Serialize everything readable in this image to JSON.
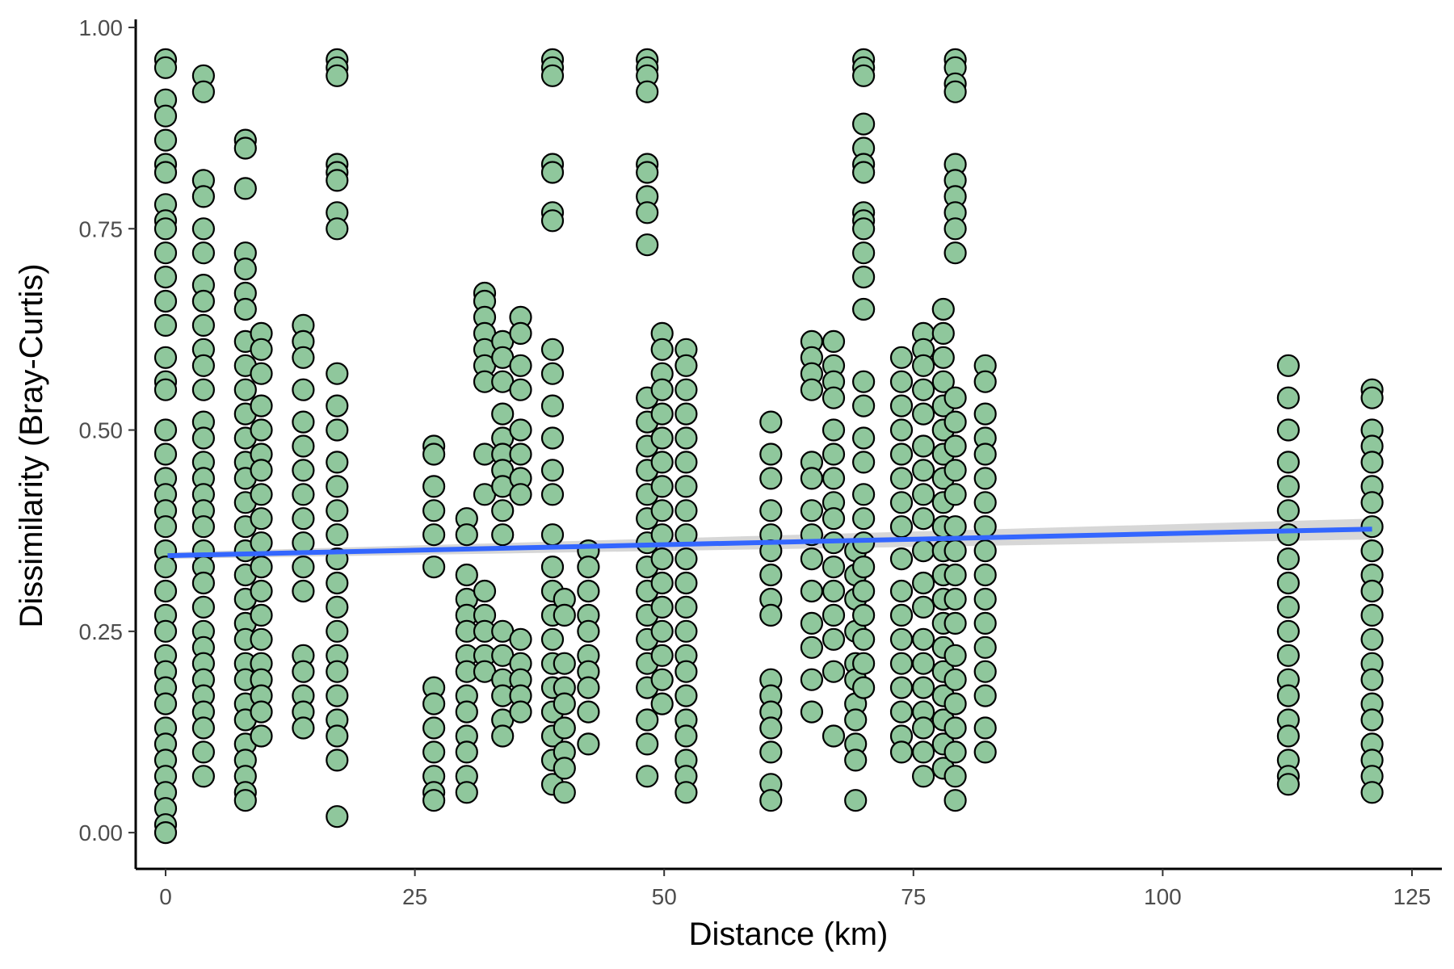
{
  "chart_data": {
    "type": "scatter",
    "xlabel": "Distance (km)",
    "ylabel": "Dissimilarity (Bray-Curtis)",
    "xlim": [
      -3,
      128
    ],
    "ylim": [
      -0.045,
      1.01
    ],
    "x_ticks": [
      0,
      25,
      50,
      75,
      100,
      125
    ],
    "y_ticks": [
      0.0,
      0.25,
      0.5,
      0.75,
      1.0
    ],
    "x_tick_labels": [
      "0",
      "25",
      "50",
      "75",
      "100",
      "125"
    ],
    "y_tick_labels": [
      "0.00",
      "0.25",
      "0.50",
      "0.75",
      "1.00"
    ],
    "grid": false,
    "legend": "none",
    "colors": {
      "point_fill": "#8fc79c",
      "point_stroke": "#000000",
      "trend_line": "#3366ff",
      "confidence_band": "#bdbdbd"
    },
    "trend": {
      "x": [
        0.2,
        121
      ],
      "y": [
        0.344,
        0.377
      ],
      "band_half_width_start": 0.004,
      "band_half_width_end": 0.013
    },
    "series": [
      {
        "values": [
          {
            "x": 0,
            "y": [
              0.96,
              0.95,
              0.91,
              0.89,
              0.86,
              0.83,
              0.82,
              0.78,
              0.76,
              0.75,
              0.72,
              0.69,
              0.66,
              0.63,
              0.59,
              0.56,
              0.55,
              0.5,
              0.47,
              0.44,
              0.42,
              0.4,
              0.38,
              0.35,
              0.33,
              0.3,
              0.27,
              0.25,
              0.22,
              0.2,
              0.18,
              0.16,
              0.13,
              0.11,
              0.09,
              0.07,
              0.05,
              0.03,
              0.01,
              0.0
            ]
          },
          {
            "x": 3.8,
            "y": [
              0.94,
              0.92,
              0.81,
              0.79,
              0.75,
              0.72,
              0.68,
              0.66,
              0.63,
              0.6,
              0.58,
              0.55,
              0.51,
              0.49,
              0.46,
              0.44,
              0.42,
              0.4,
              0.38,
              0.35,
              0.33,
              0.31,
              0.28,
              0.25,
              0.23,
              0.21,
              0.19,
              0.17,
              0.15,
              0.13,
              0.1,
              0.07
            ]
          },
          {
            "x": 8,
            "y": [
              0.86,
              0.85,
              0.8,
              0.72,
              0.7,
              0.67,
              0.65,
              0.61,
              0.58,
              0.55,
              0.52,
              0.49,
              0.46,
              0.44,
              0.41,
              0.38,
              0.35,
              0.32,
              0.29,
              0.26,
              0.24,
              0.21,
              0.19,
              0.16,
              0.14,
              0.11,
              0.09,
              0.07,
              0.05,
              0.04
            ]
          },
          {
            "x": 9.6,
            "y": [
              0.62,
              0.6,
              0.57,
              0.53,
              0.5,
              0.47,
              0.45,
              0.42,
              0.39,
              0.36,
              0.33,
              0.3,
              0.27,
              0.24,
              0.21,
              0.19,
              0.17,
              0.15,
              0.12
            ]
          },
          {
            "x": 13.8,
            "y": [
              0.63,
              0.61,
              0.59,
              0.55,
              0.51,
              0.48,
              0.45,
              0.42,
              0.39,
              0.36,
              0.33,
              0.3,
              0.22,
              0.2,
              0.17,
              0.15,
              0.13
            ]
          },
          {
            "x": 17.2,
            "y": [
              0.96,
              0.95,
              0.94,
              0.83,
              0.82,
              0.81,
              0.77,
              0.75,
              0.57,
              0.53,
              0.5,
              0.46,
              0.43,
              0.4,
              0.37,
              0.34,
              0.31,
              0.28,
              0.25,
              0.22,
              0.2,
              0.17,
              0.14,
              0.12,
              0.09,
              0.02
            ]
          },
          {
            "x": 26.9,
            "y": [
              0.48,
              0.47,
              0.43,
              0.4,
              0.37,
              0.33,
              0.18,
              0.16,
              0.13,
              0.1,
              0.07,
              0.05,
              0.04
            ]
          },
          {
            "x": 30.2,
            "y": [
              0.39,
              0.37,
              0.32,
              0.29,
              0.27,
              0.25,
              0.22,
              0.2,
              0.17,
              0.15,
              0.12,
              0.1,
              0.07,
              0.05
            ]
          },
          {
            "x": 32,
            "y": [
              0.67,
              0.66,
              0.64,
              0.62,
              0.6,
              0.58,
              0.56,
              0.47,
              0.42,
              0.3,
              0.27,
              0.25,
              0.22,
              0.2
            ]
          },
          {
            "x": 33.8,
            "y": [
              0.61,
              0.59,
              0.56,
              0.52,
              0.49,
              0.47,
              0.45,
              0.43,
              0.4,
              0.37,
              0.25,
              0.22,
              0.19,
              0.17,
              0.14,
              0.12
            ]
          },
          {
            "x": 35.6,
            "y": [
              0.64,
              0.62,
              0.58,
              0.55,
              0.5,
              0.47,
              0.44,
              0.42,
              0.24,
              0.21,
              0.19,
              0.17,
              0.15
            ]
          },
          {
            "x": 38.8,
            "y": [
              0.96,
              0.95,
              0.94,
              0.83,
              0.82,
              0.77,
              0.76,
              0.6,
              0.57,
              0.53,
              0.49,
              0.45,
              0.42,
              0.37,
              0.33,
              0.3,
              0.27,
              0.24,
              0.21,
              0.18,
              0.15,
              0.12,
              0.09,
              0.06
            ]
          },
          {
            "x": 40,
            "y": [
              0.29,
              0.27,
              0.21,
              0.18,
              0.16,
              0.13,
              0.1,
              0.08,
              0.05
            ]
          },
          {
            "x": 42.4,
            "y": [
              0.35,
              0.33,
              0.3,
              0.27,
              0.25,
              0.22,
              0.2,
              0.18,
              0.15,
              0.11
            ]
          },
          {
            "x": 48.3,
            "y": [
              0.96,
              0.95,
              0.94,
              0.92,
              0.83,
              0.82,
              0.79,
              0.77,
              0.73,
              0.54,
              0.51,
              0.48,
              0.45,
              0.42,
              0.39,
              0.36,
              0.33,
              0.3,
              0.27,
              0.24,
              0.21,
              0.18,
              0.14,
              0.11,
              0.07
            ]
          },
          {
            "x": 49.8,
            "y": [
              0.62,
              0.6,
              0.57,
              0.55,
              0.52,
              0.49,
              0.46,
              0.43,
              0.4,
              0.37,
              0.34,
              0.31,
              0.28,
              0.25,
              0.22,
              0.19,
              0.16
            ]
          },
          {
            "x": 52.2,
            "y": [
              0.6,
              0.58,
              0.55,
              0.52,
              0.49,
              0.46,
              0.43,
              0.4,
              0.37,
              0.34,
              0.31,
              0.28,
              0.25,
              0.22,
              0.2,
              0.17,
              0.14,
              0.12,
              0.09,
              0.07,
              0.05
            ]
          },
          {
            "x": 60.7,
            "y": [
              0.51,
              0.47,
              0.44,
              0.4,
              0.37,
              0.35,
              0.32,
              0.29,
              0.27,
              0.19,
              0.17,
              0.15,
              0.13,
              0.1,
              0.06,
              0.04
            ]
          },
          {
            "x": 64.8,
            "y": [
              0.61,
              0.59,
              0.57,
              0.55,
              0.46,
              0.44,
              0.4,
              0.37,
              0.34,
              0.3,
              0.26,
              0.23,
              0.19,
              0.15
            ]
          },
          {
            "x": 67,
            "y": [
              0.61,
              0.58,
              0.56,
              0.54,
              0.5,
              0.47,
              0.44,
              0.41,
              0.39,
              0.36,
              0.33,
              0.3,
              0.27,
              0.24,
              0.2,
              0.12
            ]
          },
          {
            "x": 69.2,
            "y": [
              0.35,
              0.32,
              0.29,
              0.25,
              0.21,
              0.19,
              0.16,
              0.14,
              0.11,
              0.09,
              0.04
            ]
          },
          {
            "x": 70,
            "y": [
              0.96,
              0.95,
              0.94,
              0.88,
              0.85,
              0.83,
              0.82,
              0.77,
              0.76,
              0.75,
              0.72,
              0.69,
              0.65,
              0.56,
              0.53,
              0.49,
              0.46,
              0.42,
              0.39,
              0.36,
              0.33,
              0.3,
              0.27,
              0.24,
              0.21,
              0.18
            ]
          },
          {
            "x": 73.8,
            "y": [
              0.59,
              0.56,
              0.53,
              0.5,
              0.47,
              0.44,
              0.41,
              0.38,
              0.34,
              0.3,
              0.27,
              0.24,
              0.21,
              0.18,
              0.15,
              0.12,
              0.1
            ]
          },
          {
            "x": 76,
            "y": [
              0.62,
              0.6,
              0.58,
              0.55,
              0.52,
              0.48,
              0.45,
              0.42,
              0.39,
              0.35,
              0.31,
              0.28,
              0.24,
              0.21,
              0.18,
              0.15,
              0.13,
              0.1,
              0.07
            ]
          },
          {
            "x": 78,
            "y": [
              0.65,
              0.62,
              0.59,
              0.56,
              0.53,
              0.5,
              0.47,
              0.44,
              0.41,
              0.38,
              0.35,
              0.32,
              0.29,
              0.26,
              0.23,
              0.2,
              0.17,
              0.14,
              0.11,
              0.08
            ]
          },
          {
            "x": 79.2,
            "y": [
              0.96,
              0.95,
              0.93,
              0.92,
              0.83,
              0.81,
              0.79,
              0.77,
              0.75,
              0.72,
              0.54,
              0.51,
              0.48,
              0.45,
              0.42,
              0.38,
              0.35,
              0.32,
              0.29,
              0.26,
              0.22,
              0.19,
              0.16,
              0.13,
              0.1,
              0.07,
              0.04
            ]
          },
          {
            "x": 82.2,
            "y": [
              0.58,
              0.56,
              0.52,
              0.49,
              0.47,
              0.44,
              0.41,
              0.38,
              0.35,
              0.32,
              0.29,
              0.26,
              0.23,
              0.2,
              0.17,
              0.13,
              0.1
            ]
          },
          {
            "x": 112.6,
            "y": [
              0.58,
              0.54,
              0.5,
              0.46,
              0.43,
              0.4,
              0.37,
              0.34,
              0.31,
              0.28,
              0.25,
              0.22,
              0.19,
              0.17,
              0.14,
              0.12,
              0.09,
              0.07,
              0.06
            ]
          },
          {
            "x": 121,
            "y": [
              0.55,
              0.54,
              0.5,
              0.48,
              0.46,
              0.43,
              0.41,
              0.38,
              0.35,
              0.32,
              0.3,
              0.27,
              0.24,
              0.21,
              0.19,
              0.16,
              0.14,
              0.11,
              0.09,
              0.07,
              0.05
            ]
          }
        ]
      }
    ]
  }
}
